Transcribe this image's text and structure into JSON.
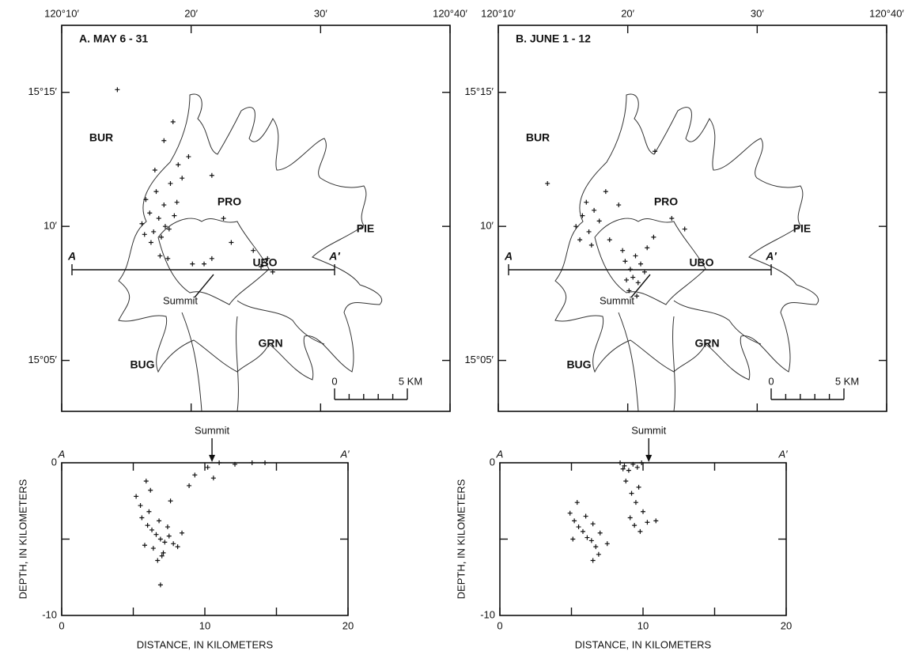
{
  "panels": [
    {
      "title": "A. MAY 6 - 31",
      "map": {
        "xlim": [
          10,
          40
        ],
        "ylim": [
          3.1,
          17.5
        ],
        "xticks": [
          {
            "value": 10,
            "label": "120°10′"
          },
          {
            "value": 20,
            "label": "20′"
          },
          {
            "value": 30,
            "label": "30′"
          },
          {
            "value": 40,
            "label": "120°40′"
          }
        ],
        "yticks": [
          {
            "value": 15,
            "label": "15°15′"
          },
          {
            "value": 10,
            "label": "10′"
          },
          {
            "value": 5,
            "label": "15°05′"
          }
        ],
        "stations": [
          "BUR",
          "PRO",
          "PIE",
          "UBO",
          "GRN",
          "BUG"
        ],
        "line_start": "A",
        "line_end": "A′",
        "summit_label": "Summit",
        "scale": [
          {
            "value": 0,
            "label": "0"
          },
          {
            "value": 5,
            "label": "5 KM"
          }
        ],
        "epicenters": {
          "x": [
            16.2,
            16.8,
            17.1,
            17.5,
            17.9,
            18.3,
            18.7,
            16.5,
            17.3,
            18.0,
            18.9,
            16.9,
            17.7,
            18.4,
            17.2,
            16.4,
            19.3,
            19.8,
            18.6,
            17.6,
            20.1,
            19.0,
            25.4,
            25.9,
            26.3,
            24.8,
            21.0,
            21.6,
            23.1,
            22.5,
            18.2,
            17.9,
            14.3,
            21.6
          ],
          "y": [
            10.1,
            10.5,
            9.8,
            10.3,
            10.8,
            9.9,
            10.4,
            11.0,
            11.3,
            10.0,
            10.9,
            9.4,
            9.6,
            11.6,
            12.1,
            9.7,
            11.8,
            12.6,
            13.9,
            8.9,
            8.6,
            12.3,
            8.5,
            8.8,
            8.3,
            9.1,
            8.6,
            8.8,
            9.4,
            10.3,
            8.8,
            13.2,
            15.1,
            11.9
          ]
        }
      },
      "section": {
        "type": "scatter",
        "xlabel": "DISTANCE, IN KILOMETERS",
        "ylabel": "DEPTH, IN KILOMETERS",
        "xlim": [
          0,
          20
        ],
        "ylim": [
          -10,
          0
        ],
        "xticks": [
          0,
          10,
          20
        ],
        "yticks": [
          0,
          -10
        ],
        "start_label": "A",
        "end_label": "A′",
        "summit_label": "Summit",
        "summit_x": 10.5,
        "x": [
          5.2,
          5.6,
          6.0,
          6.3,
          6.6,
          6.9,
          7.2,
          7.5,
          7.8,
          8.1,
          6.1,
          6.8,
          7.4,
          5.8,
          6.4,
          7.0,
          8.4,
          5.5,
          6.2,
          7.6,
          8.9,
          9.3,
          10.2,
          11.0,
          12.1,
          13.3,
          14.2,
          10.6,
          5.9,
          6.7,
          7.1,
          6.9
        ],
        "y": [
          -2.2,
          -3.6,
          -4.1,
          -4.4,
          -4.7,
          -5.0,
          -5.2,
          -4.8,
          -5.3,
          -5.5,
          -3.2,
          -3.8,
          -4.2,
          -5.4,
          -5.6,
          -6.1,
          -4.6,
          -2.8,
          -1.8,
          -2.5,
          -1.5,
          -0.8,
          -0.3,
          0,
          -0.1,
          0,
          0,
          -1.0,
          -1.2,
          -6.4,
          -5.9,
          -8.0
        ]
      }
    },
    {
      "title": "B. JUNE 1 - 12",
      "map": {
        "xlim": [
          10,
          40
        ],
        "ylim": [
          3.1,
          17.5
        ],
        "xticks": [
          {
            "value": 10,
            "label": "120°10′"
          },
          {
            "value": 20,
            "label": "20′"
          },
          {
            "value": 30,
            "label": "30′"
          },
          {
            "value": 40,
            "label": "120°40′"
          }
        ],
        "yticks": [
          {
            "value": 15,
            "label": "15°15′"
          },
          {
            "value": 10,
            "label": "10′"
          },
          {
            "value": 5,
            "label": "15°05′"
          }
        ],
        "stations": [
          "BUR",
          "PRO",
          "PIE",
          "UBO",
          "GRN",
          "BUG"
        ],
        "line_start": "A",
        "line_end": "A′",
        "summit_label": "Summit",
        "scale": [
          {
            "value": 0,
            "label": "0"
          },
          {
            "value": 5,
            "label": "5 KM"
          }
        ],
        "epicenters": {
          "x": [
            16.0,
            16.5,
            17.0,
            17.4,
            16.8,
            17.8,
            16.3,
            17.2,
            19.8,
            20.2,
            20.6,
            21.0,
            20.4,
            19.6,
            21.3,
            20.8,
            19.9,
            20.1,
            21.5,
            22.0,
            18.6,
            18.3,
            23.4,
            24.4,
            13.8,
            22.1,
            20.7,
            19.3
          ],
          "y": [
            10.0,
            10.4,
            9.8,
            10.6,
            10.9,
            10.2,
            9.5,
            9.3,
            8.7,
            8.4,
            8.9,
            8.6,
            8.1,
            9.1,
            8.3,
            7.9,
            8.0,
            7.6,
            9.2,
            9.6,
            9.5,
            11.3,
            10.3,
            9.9,
            11.6,
            12.8,
            7.4,
            10.8
          ]
        }
      },
      "section": {
        "type": "scatter",
        "xlabel": "DISTANCE, IN KILOMETERS",
        "ylabel": "DEPTH, IN KILOMETERS",
        "xlim": [
          0,
          20
        ],
        "ylim": [
          -10,
          0
        ],
        "xticks": [
          0,
          10,
          20
        ],
        "yticks": [
          0,
          -10
        ],
        "start_label": "A",
        "end_label": "A′",
        "summit_label": "Summit",
        "summit_x": 10.4,
        "x": [
          4.9,
          5.2,
          5.5,
          5.8,
          6.1,
          6.4,
          6.7,
          5.4,
          6.0,
          6.5,
          7.0,
          7.5,
          5.1,
          6.9,
          8.4,
          8.7,
          9.0,
          9.3,
          9.6,
          9.9,
          8.8,
          9.2,
          9.5,
          10.0,
          9.1,
          9.4,
          9.8,
          10.3,
          10.9,
          9.7,
          8.6,
          6.5
        ],
        "y": [
          -3.3,
          -3.8,
          -4.2,
          -4.5,
          -4.9,
          -5.1,
          -5.5,
          -2.6,
          -3.5,
          -4.0,
          -4.6,
          -5.3,
          -5.0,
          -6.0,
          0,
          -0.2,
          -0.5,
          -0.1,
          -0.3,
          0,
          -1.2,
          -2.0,
          -2.6,
          -3.2,
          -3.6,
          -4.1,
          -4.5,
          -3.9,
          -3.8,
          -1.6,
          -0.4,
          -6.4
        ]
      }
    }
  ]
}
